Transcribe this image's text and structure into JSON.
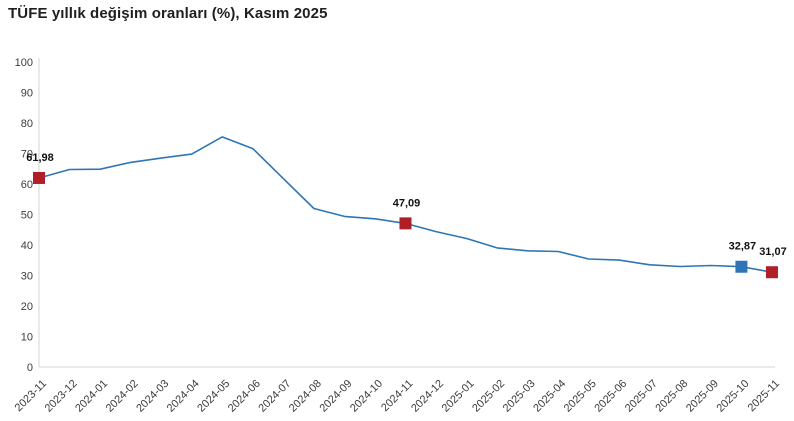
{
  "colors": {
    "background": "#ffffff",
    "line": "#2e75b6",
    "marker_red": "#b01e28",
    "marker_blue": "#2e75b6",
    "axis_line": "#d4d4d4",
    "title_text": "#1f1f1f",
    "tick_text": "#3c3c3c",
    "annotation_text": "#111111"
  },
  "chart_data": {
    "type": "line",
    "title": "TÜFE yıllık değişim oranları (%), Kasım 2025",
    "xlabel": "",
    "ylabel": "",
    "ylim": [
      0,
      100
    ],
    "ytick_step": 10,
    "grid": false,
    "legend_position": "none",
    "x": [
      "2023-11",
      "2023-12",
      "2024-01",
      "2024-02",
      "2024-03",
      "2024-04",
      "2024-05",
      "2024-06",
      "2024-07",
      "2024-08",
      "2024-09",
      "2024-10",
      "2024-11",
      "2024-12",
      "2025-01",
      "2025-02",
      "2025-03",
      "2025-04",
      "2025-05",
      "2025-06",
      "2025-07",
      "2025-08",
      "2025-09",
      "2025-10",
      "2025-11"
    ],
    "values": [
      61.98,
      64.77,
      64.86,
      67.07,
      68.5,
      69.8,
      75.45,
      71.6,
      61.78,
      51.97,
      49.38,
      48.58,
      47.09,
      44.38,
      42.12,
      39.05,
      38.1,
      37.86,
      35.41,
      35.05,
      33.52,
      32.95,
      33.29,
      32.87,
      31.07
    ],
    "annotated_points": [
      {
        "x": "2023-11",
        "value": 61.98,
        "label": "61,98",
        "marker": "red"
      },
      {
        "x": "2024-11",
        "value": 47.09,
        "label": "47,09",
        "marker": "red"
      },
      {
        "x": "2025-10",
        "value": 32.87,
        "label": "32,87",
        "marker": "blue"
      },
      {
        "x": "2025-11",
        "value": 31.07,
        "label": "31,07",
        "marker": "red"
      }
    ]
  }
}
